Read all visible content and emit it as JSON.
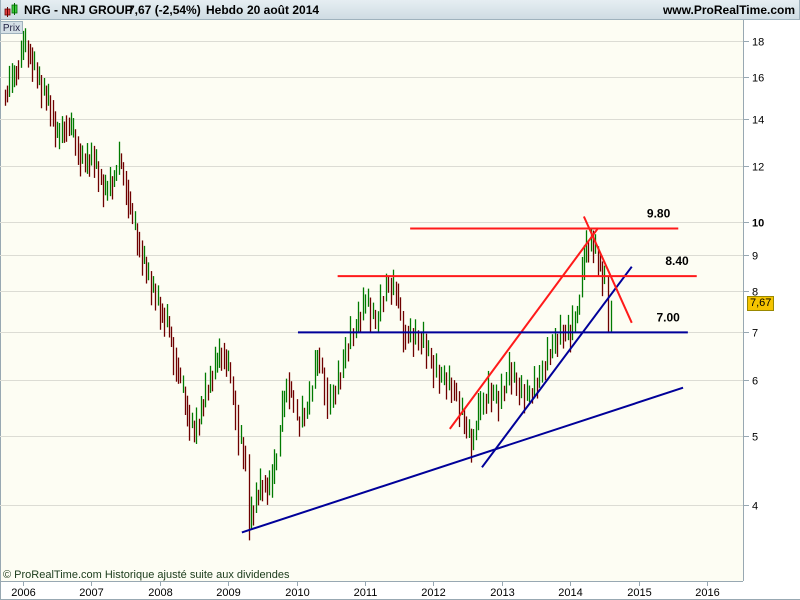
{
  "header": {
    "symbol": "NRG - NRJ GROUP",
    "quote": "7,67 (-2,54%)",
    "period": "Hebdo",
    "date": "20 août 2014",
    "site": "www.ProRealTime.com"
  },
  "panel_label": "Prix",
  "footer_note": "© ProRealTime.com Historique ajusté suite aux dividendes",
  "last_price_label": "7,67",
  "colors": {
    "up": "#007a00",
    "down": "#6e0000",
    "red_line": "#ff1a1a",
    "blue_line": "#000099",
    "background": "#fdfdf3",
    "last_price_bg": "#f5c400"
  },
  "chart_data": {
    "type": "candlestick",
    "scale": "log",
    "ylim": [
      3.4,
      19.5
    ],
    "xlim": [
      2005.7,
      2016.5
    ],
    "grid": "horizontal",
    "y_ticks": [
      4,
      5,
      6,
      7,
      8,
      9,
      10,
      12,
      14,
      16,
      18
    ],
    "x_ticks": [
      "2006",
      "2007",
      "2008",
      "2009",
      "2010",
      "2011",
      "2012",
      "2013",
      "2014",
      "2015",
      "2016"
    ],
    "closes": [
      [
        2005.7,
        15
      ],
      [
        2005.8,
        15.6
      ],
      [
        2005.9,
        16.5
      ],
      [
        2006.0,
        17.8
      ],
      [
        2006.1,
        17.2
      ],
      [
        2006.2,
        16
      ],
      [
        2006.3,
        15.2
      ],
      [
        2006.4,
        14.5
      ],
      [
        2006.5,
        13
      ],
      [
        2006.6,
        13.8
      ],
      [
        2006.7,
        13.5
      ],
      [
        2006.8,
        12.6
      ],
      [
        2006.9,
        12
      ],
      [
        2007.0,
        12.5
      ],
      [
        2007.1,
        11.6
      ],
      [
        2007.2,
        11
      ],
      [
        2007.3,
        11.5
      ],
      [
        2007.4,
        12.2
      ],
      [
        2007.5,
        11.2
      ],
      [
        2007.6,
        10
      ],
      [
        2007.7,
        9.2
      ],
      [
        2007.8,
        8.5
      ],
      [
        2007.9,
        8
      ],
      [
        2008.0,
        7.5
      ],
      [
        2008.1,
        7.2
      ],
      [
        2008.2,
        6.5
      ],
      [
        2008.3,
        5.9
      ],
      [
        2008.4,
        5.4
      ],
      [
        2008.5,
        5
      ],
      [
        2008.6,
        5.5
      ],
      [
        2008.7,
        5.9
      ],
      [
        2008.8,
        6.3
      ],
      [
        2008.9,
        6.6
      ],
      [
        2009.0,
        6.2
      ],
      [
        2009.1,
        5.4
      ],
      [
        2009.15,
        5.0
      ],
      [
        2009.25,
        4.6
      ],
      [
        2009.3,
        3.8
      ],
      [
        2009.4,
        4.1
      ],
      [
        2009.5,
        4.3
      ],
      [
        2009.6,
        4.2
      ],
      [
        2009.7,
        4.8
      ],
      [
        2009.75,
        5.2
      ],
      [
        2009.85,
        6.0
      ],
      [
        2009.95,
        5.5
      ],
      [
        2010.0,
        5.2
      ],
      [
        2010.15,
        5.5
      ],
      [
        2010.3,
        6.5
      ],
      [
        2010.4,
        5.9
      ],
      [
        2010.45,
        5.5
      ],
      [
        2010.6,
        6.0
      ],
      [
        2010.75,
        6.8
      ],
      [
        2010.9,
        7.3
      ],
      [
        2011.0,
        7.8
      ],
      [
        2011.15,
        7.2
      ],
      [
        2011.3,
        8.2
      ],
      [
        2011.45,
        8.0
      ],
      [
        2011.55,
        7.0
      ],
      [
        2011.7,
        6.9
      ],
      [
        2011.85,
        6.8
      ],
      [
        2012.0,
        6.2
      ],
      [
        2012.15,
        6.0
      ],
      [
        2012.3,
        5.8
      ],
      [
        2012.45,
        5.2
      ],
      [
        2012.55,
        4.9
      ],
      [
        2012.65,
        5.4
      ],
      [
        2012.8,
        5.8
      ],
      [
        2012.95,
        5.6
      ],
      [
        2013.1,
        6.2
      ],
      [
        2013.25,
        5.8
      ],
      [
        2013.4,
        5.7
      ],
      [
        2013.55,
        6.1
      ],
      [
        2013.7,
        6.6
      ],
      [
        2013.85,
        7.0
      ],
      [
        2014.0,
        7.0
      ],
      [
        2014.1,
        7.6
      ],
      [
        2014.2,
        9.0
      ],
      [
        2014.3,
        9.5
      ],
      [
        2014.4,
        8.8
      ],
      [
        2014.5,
        8.2
      ],
      [
        2014.55,
        7.2
      ],
      [
        2014.6,
        7.67
      ]
    ],
    "levels": [
      {
        "label": "9.80",
        "value": 9.8,
        "color": "red",
        "from": 2011.66,
        "to": 2015.58
      },
      {
        "label": "8.40",
        "value": 8.4,
        "color": "red",
        "from": 2010.6,
        "to": 2015.85
      },
      {
        "label": "7.00",
        "value": 7.0,
        "color": "blue",
        "from": 2010.02,
        "to": 2015.72
      }
    ],
    "trendlines": [
      {
        "color": "blue",
        "p1": [
          2009.2,
          3.66
        ],
        "p2": [
          2015.65,
          5.85
        ]
      },
      {
        "color": "blue",
        "p1": [
          2012.71,
          4.52
        ],
        "p2": [
          2014.9,
          8.66
        ]
      },
      {
        "color": "red",
        "p1": [
          2012.24,
          5.12
        ],
        "p2": [
          2014.41,
          9.82
        ]
      },
      {
        "color": "red",
        "p1": [
          2014.2,
          10.19
        ],
        "p2": [
          2014.9,
          7.22
        ]
      }
    ]
  }
}
